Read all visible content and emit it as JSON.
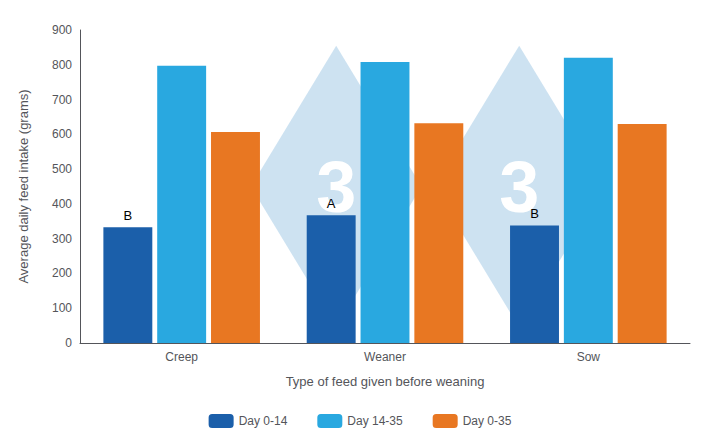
{
  "chart_data": {
    "type": "bar",
    "categories": [
      "Creep",
      "Weaner",
      "Sow"
    ],
    "series": [
      {
        "name": "Day 0-14",
        "color": "#1b5faa",
        "values": [
          333,
          367,
          338
        ]
      },
      {
        "name": "Day 14-35",
        "color": "#29a8e0",
        "values": [
          797,
          808,
          820
        ]
      },
      {
        "name": "Day 0-35",
        "color": "#e87722",
        "values": [
          607,
          632,
          630
        ]
      }
    ],
    "annotations": [
      {
        "text": "B",
        "category": "Creep",
        "series": "Day 0-14"
      },
      {
        "text": "A",
        "category": "Weaner",
        "series": "Day 0-14"
      },
      {
        "text": "B",
        "category": "Sow",
        "series": "Day 0-14"
      },
      {
        "text": "3",
        "color": "#c8dff0"
      },
      {
        "text": "3",
        "color": "#c8dff0"
      }
    ],
    "xlabel": "Type of feed given before weaning",
    "ylabel": "Average daily feed intake (grams)",
    "ylim": [
      0,
      900
    ],
    "yticks": [
      0,
      100,
      200,
      300,
      400,
      500,
      600,
      700,
      800,
      900
    ],
    "grid": false,
    "legend": "bottom"
  }
}
